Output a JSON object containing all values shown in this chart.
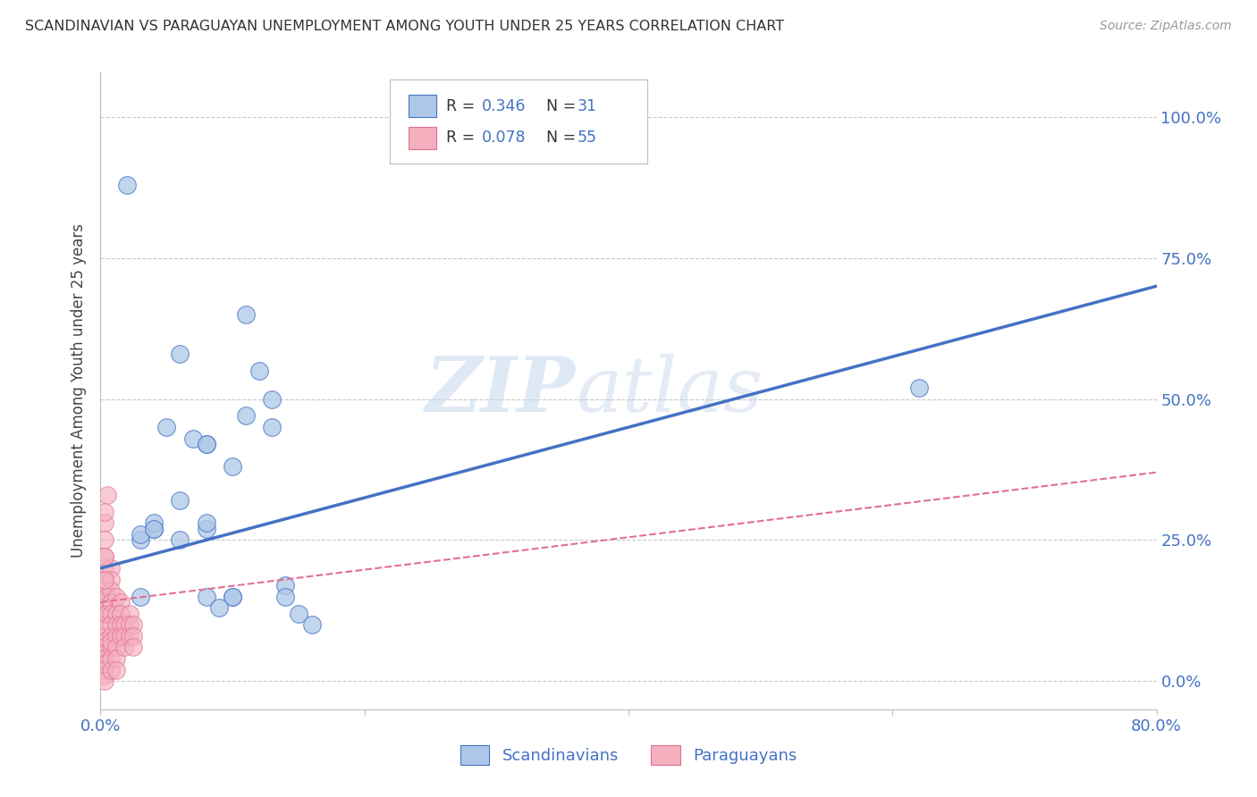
{
  "title": "SCANDINAVIAN VS PARAGUAYAN UNEMPLOYMENT AMONG YOUTH UNDER 25 YEARS CORRELATION CHART",
  "source": "Source: ZipAtlas.com",
  "ylabel_label": "Unemployment Among Youth under 25 years",
  "ytick_labels": [
    "0.0%",
    "25.0%",
    "50.0%",
    "75.0%",
    "100.0%"
  ],
  "ytick_values": [
    0,
    25,
    50,
    75,
    100
  ],
  "xlim": [
    0,
    80
  ],
  "ylim": [
    -5,
    108
  ],
  "legend_blue_R": "0.346",
  "legend_blue_N": "31",
  "legend_pink_R": "0.078",
  "legend_pink_N": "55",
  "legend_blue_label": "Scandinavians",
  "legend_pink_label": "Paraguayans",
  "blue_color": "#adc8e8",
  "pink_color": "#f5b0c0",
  "blue_line_color": "#4472c4",
  "pink_line_color": "#e07090",
  "watermark_ZIP": "ZIP",
  "watermark_atlas": "atlas",
  "background_color": "#ffffff",
  "blue_trend_x": [
    0,
    80
  ],
  "blue_trend_y": [
    20,
    70
  ],
  "pink_trend_x": [
    0,
    80
  ],
  "pink_trend_y": [
    14,
    37
  ],
  "scatter_blue_x": [
    4,
    4,
    6,
    6,
    8,
    8,
    8,
    10,
    10,
    10,
    11,
    11,
    12,
    13,
    13,
    14,
    14,
    15,
    16,
    3,
    3,
    3,
    4,
    5,
    6,
    7,
    8,
    8,
    9,
    62,
    2
  ],
  "scatter_blue_y": [
    27,
    28,
    32,
    58,
    42,
    27,
    28,
    15,
    15,
    38,
    65,
    47,
    55,
    45,
    50,
    17,
    15,
    12,
    10,
    25,
    26,
    15,
    27,
    45,
    25,
    43,
    15,
    42,
    13,
    52,
    88
  ],
  "scatter_pink_x": [
    0.3,
    0.3,
    0.3,
    0.3,
    0.3,
    0.3,
    0.3,
    0.3,
    0.3,
    0.3,
    0.3,
    0.3,
    0.3,
    0.3,
    0.3,
    0.3,
    0.3,
    0.5,
    0.5,
    0.5,
    0.8,
    0.8,
    0.8,
    0.8,
    0.8,
    0.8,
    0.8,
    0.8,
    0.8,
    0.8,
    0.8,
    1.2,
    1.2,
    1.2,
    1.2,
    1.2,
    1.2,
    1.2,
    1.5,
    1.5,
    1.5,
    1.5,
    1.8,
    1.8,
    1.8,
    2.2,
    2.2,
    2.2,
    2.5,
    2.5,
    2.5,
    0.3,
    0.3,
    0.3,
    0.3
  ],
  "scatter_pink_y": [
    28,
    22,
    20,
    18,
    16,
    14,
    12,
    10,
    8,
    7,
    6,
    5,
    4,
    3,
    2,
    1,
    0,
    12,
    15,
    33,
    20,
    18,
    16,
    14,
    12,
    10,
    8,
    6,
    4,
    2,
    7,
    15,
    12,
    10,
    8,
    6,
    4,
    2,
    14,
    12,
    10,
    8,
    10,
    8,
    6,
    12,
    10,
    8,
    10,
    8,
    6,
    30,
    25,
    18,
    22
  ]
}
